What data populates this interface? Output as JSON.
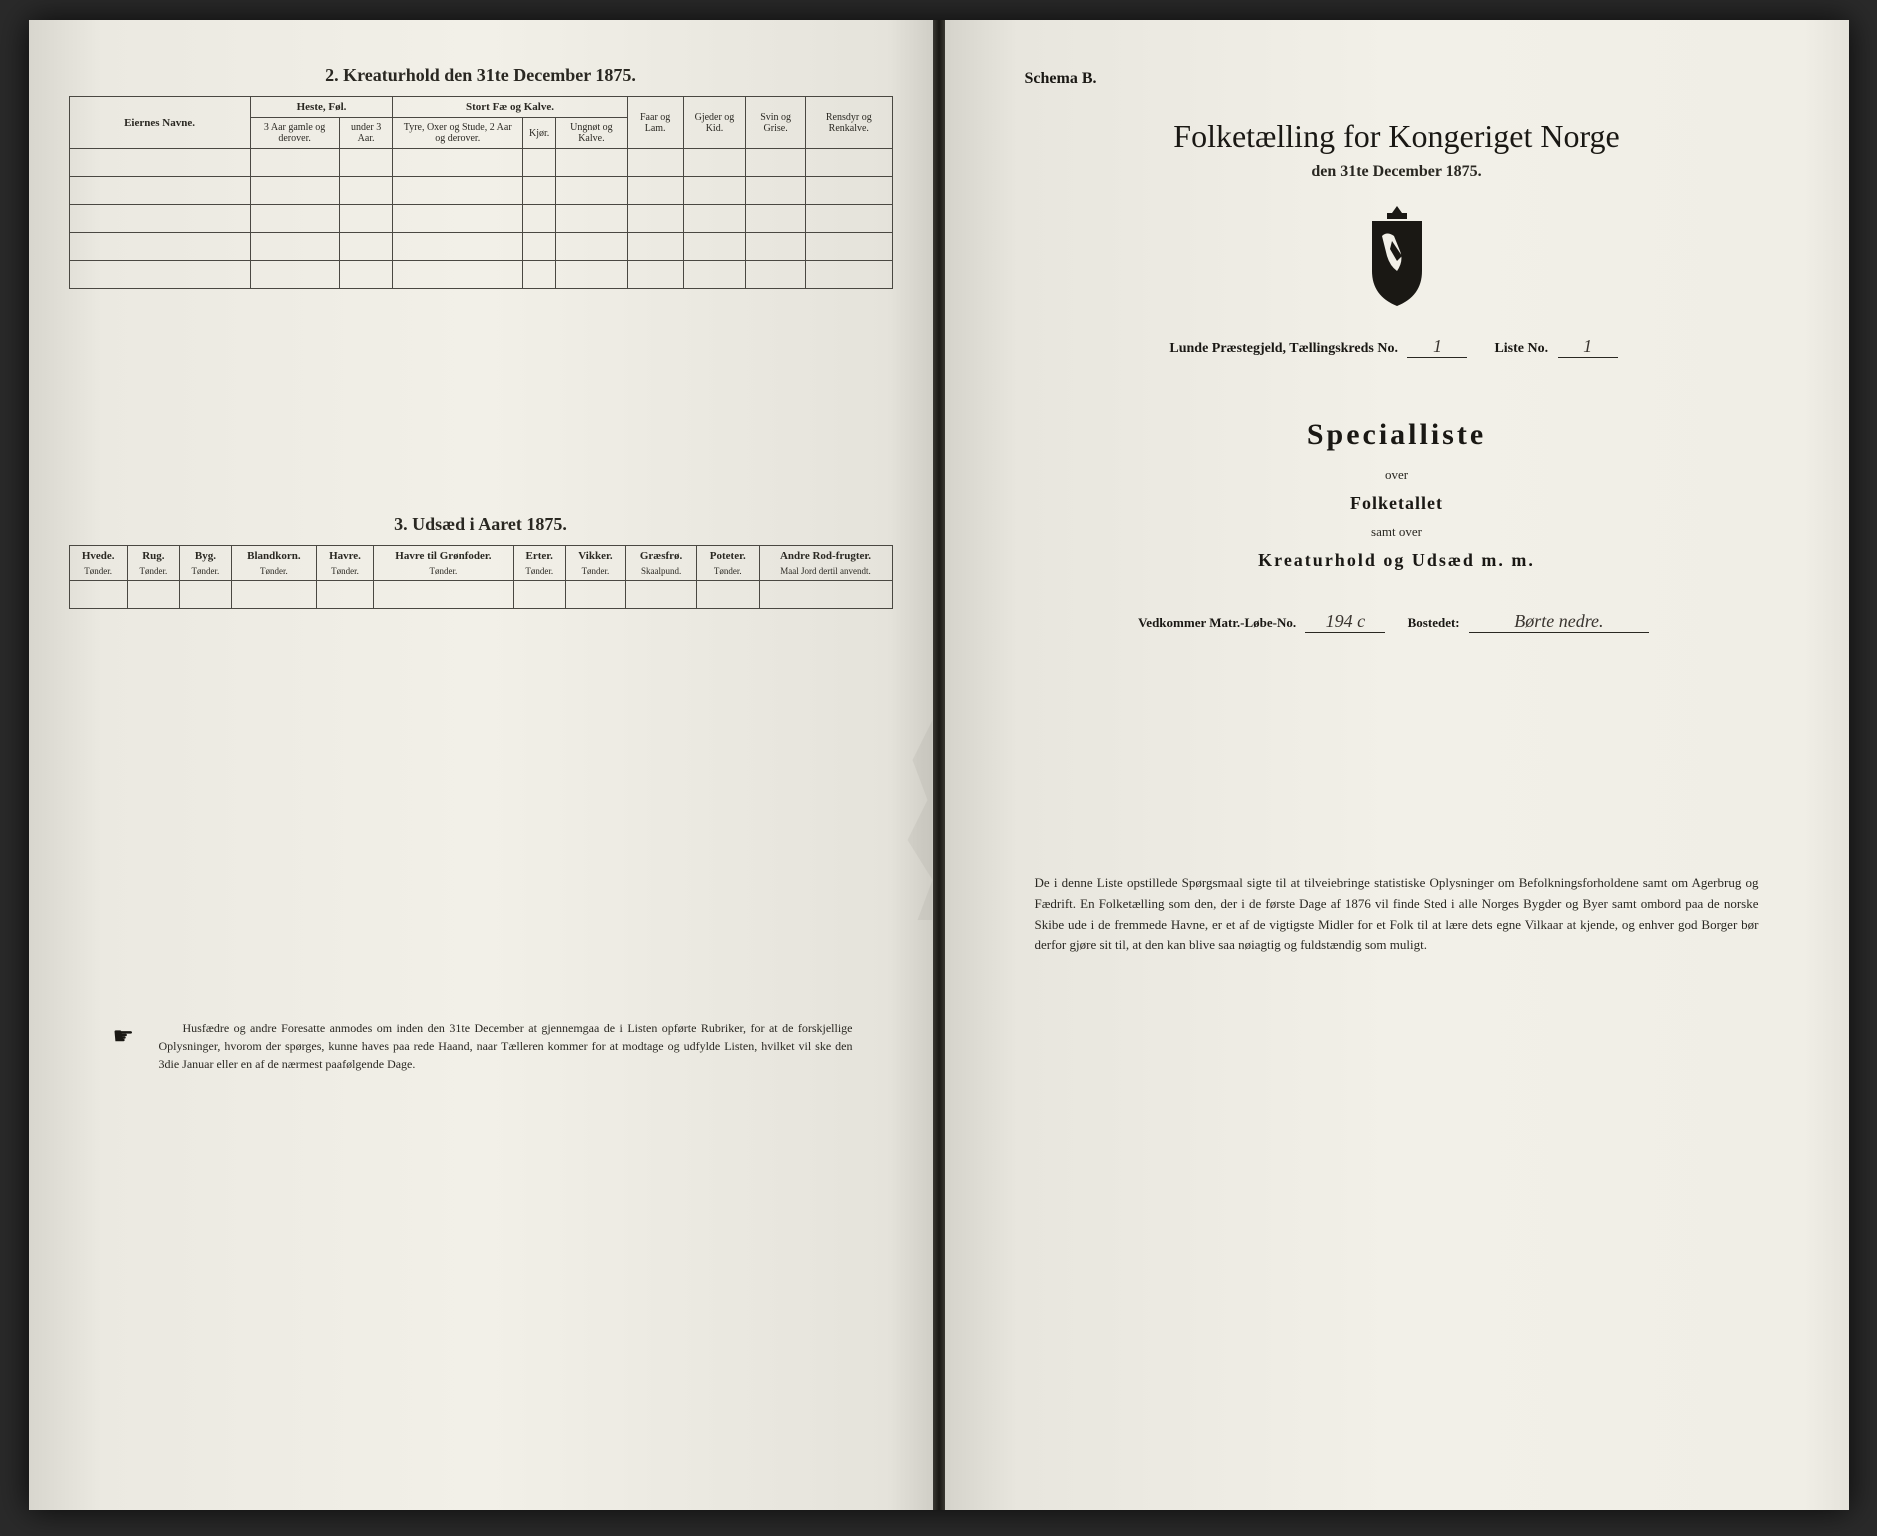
{
  "left_page": {
    "section2": {
      "title": "2. Kreaturhold den 31te December 1875.",
      "table": {
        "col_owner": "Eiernes Navne.",
        "group_horses": "Heste, Føl.",
        "group_cattle": "Stort Fæ og Kalve.",
        "col_sheep": "Faar og Lam.",
        "col_goats": "Gjeder og Kid.",
        "col_pigs": "Svin og Grise.",
        "col_reindeer": "Rensdyr og Renkalve.",
        "sub_horse1": "3 Aar gamle og derover.",
        "sub_horse2": "under 3 Aar.",
        "sub_cattle1": "Tyre, Oxer og Stude, 2 Aar og derover.",
        "sub_cattle2": "Kjør.",
        "sub_cattle3": "Ungnøt og Kalve."
      }
    },
    "section3": {
      "title": "3. Udsæd i Aaret 1875.",
      "cols": [
        {
          "h": "Hvede.",
          "u": "Tønder."
        },
        {
          "h": "Rug.",
          "u": "Tønder."
        },
        {
          "h": "Byg.",
          "u": "Tønder."
        },
        {
          "h": "Blandkorn.",
          "u": "Tønder."
        },
        {
          "h": "Havre.",
          "u": "Tønder."
        },
        {
          "h": "Havre til Grønfoder.",
          "u": "Tønder."
        },
        {
          "h": "Erter.",
          "u": "Tønder."
        },
        {
          "h": "Vikker.",
          "u": "Tønder."
        },
        {
          "h": "Græsfrø.",
          "u": "Skaalpund."
        },
        {
          "h": "Poteter.",
          "u": "Tønder."
        },
        {
          "h": "Andre Rod-frugter.",
          "u": "Maal Jord dertil anvendt."
        }
      ]
    },
    "footer": "Husfædre og andre Foresatte anmodes om inden den 31te December at gjennemgaa de i Listen opførte Rubriker, for at de forskjellige Oplysninger, hvorom der spørges, kunne haves paa rede Haand, naar Tælleren kommer for at modtage og udfylde Listen, hvilket vil ske den 3die Januar eller en af de nærmest paafølgende Dage."
  },
  "right_page": {
    "schema": "Schema B.",
    "main_title": "Folketælling for Kongeriget Norge",
    "date_line": "den 31te December 1875.",
    "parish_label": "Lunde Præstegjeld, Tællingskreds No.",
    "parish_no": "1",
    "liste_label": "Liste No.",
    "liste_no": "1",
    "special_title": "Specialliste",
    "over1": "over",
    "folketallet": "Folketallet",
    "samt_over": "samt over",
    "kreatur": "Kreaturhold og Udsæd m. m.",
    "matr_label": "Vedkommer Matr.-Løbe-No.",
    "matr_no": "194 c",
    "bosted_label": "Bostedet:",
    "bosted": "Børte nedre.",
    "body": "De i denne Liste opstillede Spørgsmaal sigte til at tilveiebringe statistiske Oplysninger om Befolkningsforholdene samt om Agerbrug og Fædrift. En Folketælling som den, der i de første Dage af 1876 vil finde Sted i alle Norges Bygder og Byer samt ombord paa de norske Skibe ude i de fremmede Havne, er et af de vigtigste Midler for et Folk til at lære dets egne Vilkaar at kjende, og enhver god Borger bør derfor gjøre sit til, at den kan blive saa nøiagtig og fuldstændig som muligt."
  },
  "colors": {
    "paper": "#f2f0e8",
    "ink": "#1a1814",
    "border": "#4a4842"
  }
}
